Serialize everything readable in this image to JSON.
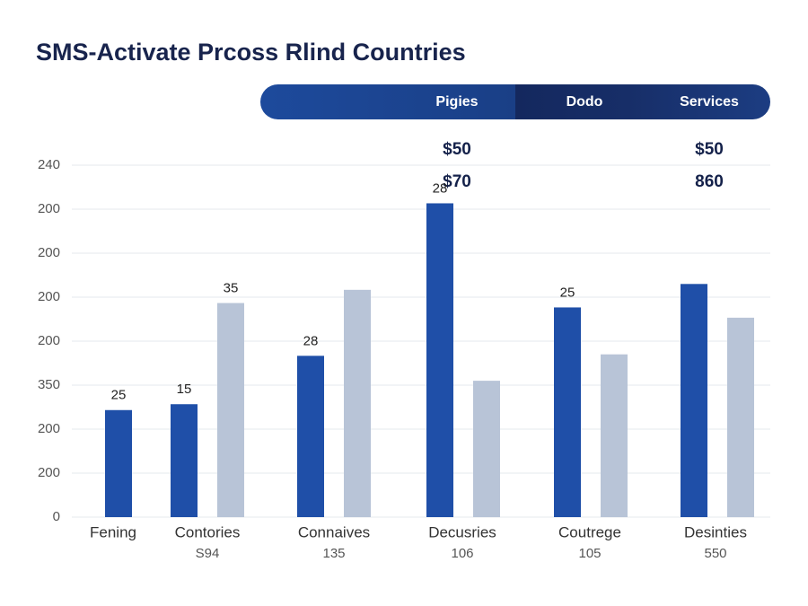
{
  "chart_data": {
    "type": "bar",
    "title": "SMS-Activate Prcoss Rlind Countries",
    "header": {
      "columns": [
        "Pigies",
        "Dodo",
        "Services"
      ],
      "rows": [
        [
          "$50",
          null,
          "$50"
        ],
        [
          "$70",
          null,
          "860"
        ]
      ]
    },
    "categories": [
      "Fening",
      "Contories",
      "Connaives",
      "Decusries",
      "Coutrege",
      "Desinties"
    ],
    "x_sublabels": [
      null,
      "S94",
      "135",
      "106",
      "105",
      "550"
    ],
    "series": [
      {
        "color": "#1f4fa8",
        "values": [
          73,
          77,
          110,
          214,
          143,
          159
        ]
      },
      {
        "color": "#b8c4d7",
        "values": [
          null,
          146,
          155,
          93,
          111,
          136
        ]
      }
    ],
    "annotations": [
      "25",
      "15",
      "35",
      "28",
      "28",
      "25"
    ],
    "ylim": [
      0,
      240
    ],
    "yticks": [
      0,
      {
        "value": 30,
        "label": "200"
      },
      {
        "value": 60,
        "label": "200"
      },
      {
        "value": 90,
        "label": "350"
      },
      {
        "value": 120,
        "label": "200"
      },
      {
        "value": 150,
        "label": "200"
      },
      {
        "value": 180,
        "label": "200"
      },
      {
        "value": 210,
        "label": "200"
      },
      240
    ],
    "grid": true
  }
}
